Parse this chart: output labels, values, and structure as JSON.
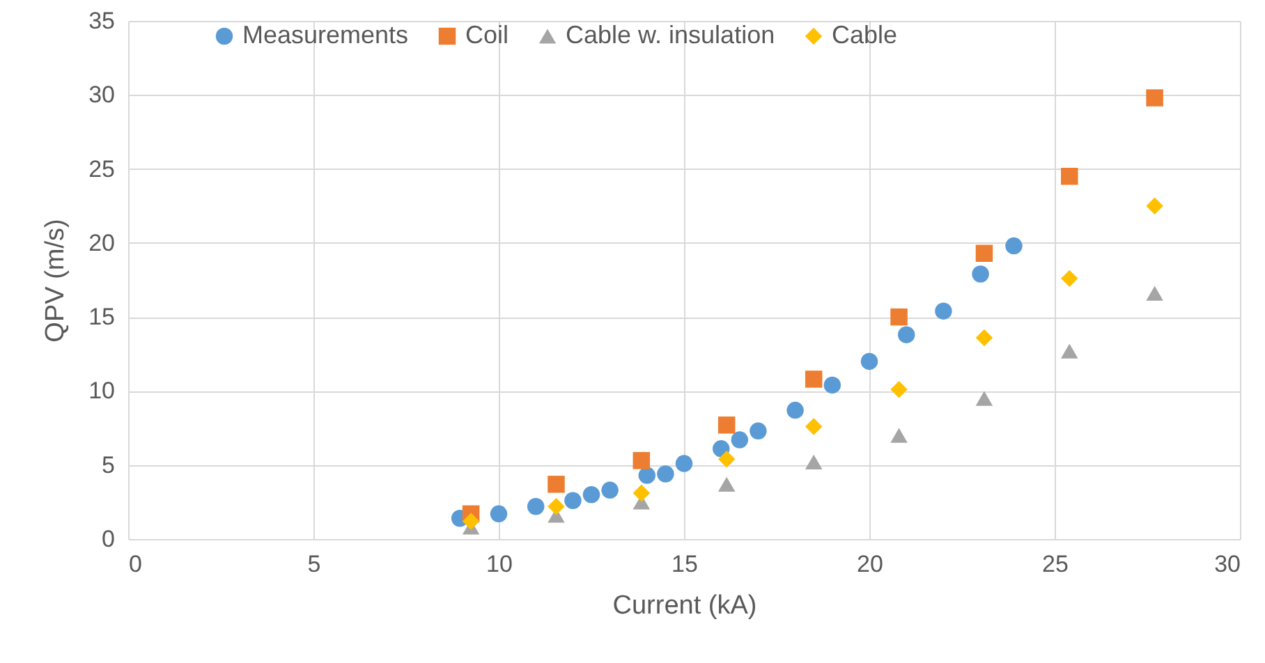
{
  "chart_data": {
    "type": "scatter",
    "xlabel": "Current (kA)",
    "ylabel": "QPV (m/s)",
    "xlim": [
      0,
      30
    ],
    "ylim": [
      0,
      35
    ],
    "xticks": [
      0,
      5,
      10,
      15,
      20,
      25,
      30
    ],
    "yticks": [
      0,
      5,
      10,
      15,
      20,
      25,
      30,
      35
    ],
    "grid": true,
    "legend": "top",
    "series": [
      {
        "name": "Measurements",
        "color": "#5b9bd5",
        "marker": "circle",
        "x": [
          8.95,
          10,
          11,
          12,
          12.5,
          13,
          14,
          14.5,
          15,
          16,
          16.5,
          17,
          18,
          19,
          20,
          21,
          22,
          23,
          23.9
        ],
        "values": [
          1.4,
          1.7,
          2.2,
          2.6,
          3,
          3.3,
          4.3,
          4.4,
          5.1,
          6.1,
          6.7,
          7.3,
          8.7,
          10.4,
          12,
          13.8,
          15.4,
          17.9,
          19.8
        ]
      },
      {
        "name": "Coil",
        "color": "#ed7d31",
        "marker": "square",
        "x": [
          9.25,
          11.55,
          13.85,
          16.15,
          18.5,
          20.8,
          23.1,
          25.4,
          27.7
        ],
        "values": [
          1.7,
          3.7,
          5.3,
          7.7,
          10.8,
          15,
          19.3,
          24.5,
          29.8
        ]
      },
      {
        "name": "Cable w. insulation",
        "color": "#a5a5a5",
        "marker": "triangle",
        "x": [
          9.25,
          11.55,
          13.85,
          16.15,
          18.5,
          20.8,
          23.1,
          25.4,
          27.7
        ],
        "values": [
          0.8,
          1.6,
          2.5,
          3.7,
          5.2,
          7,
          9.5,
          12.7,
          16.6
        ]
      },
      {
        "name": "Cable",
        "color": "#ffc000",
        "marker": "diamond",
        "x": [
          9.25,
          11.55,
          13.85,
          16.15,
          18.5,
          20.8,
          23.1,
          25.4,
          27.7
        ],
        "values": [
          1.2,
          2.2,
          3.1,
          5.4,
          7.6,
          10.1,
          13.6,
          17.6,
          22.5
        ]
      }
    ]
  }
}
